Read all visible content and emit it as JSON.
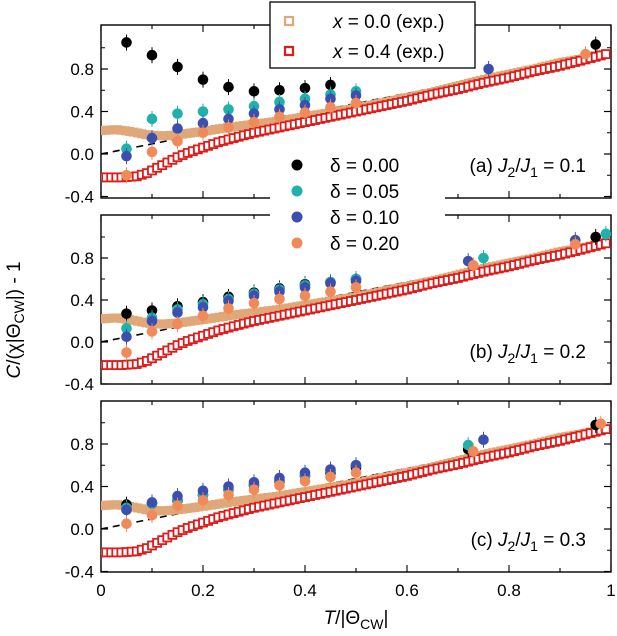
{
  "chart_data": {
    "type": "scatter",
    "xlabel": "T/|Θ_CW|",
    "ylabel": "C/(χ|Θ_CW|) - 1",
    "xlim": [
      0,
      1
    ],
    "ylim": [
      -0.4,
      1.15
    ],
    "x_ticks": [
      "0",
      "0.2",
      "0.4",
      "0.6",
      "0.8",
      "1"
    ],
    "y_ticks": [
      "-0.4",
      "0.0",
      "0.4",
      "0.8"
    ],
    "colors": {
      "x0": "#e0a878",
      "x4": "#dd1c1c",
      "d000": "#000000",
      "d005": "#20b2aa",
      "d010": "#3b4fb0",
      "d020": "#f08a58",
      "dash": "#000000"
    },
    "exp_legend": [
      {
        "x_label": "x",
        "rest": " = 0.0 (exp.)",
        "key": "x0"
      },
      {
        "x_label": "x",
        "rest": " = 0.4 (exp.)",
        "key": "x4"
      }
    ],
    "delta_legend": [
      {
        "label": "δ = 0.00",
        "key": "d000"
      },
      {
        "label": "δ = 0.05",
        "key": "d005"
      },
      {
        "label": "δ = 0.10",
        "key": "d010"
      },
      {
        "label": "δ = 0.20",
        "key": "d020"
      }
    ],
    "reference_line": {
      "style": "dashed",
      "intercept": 0.0,
      "slope": 0.95
    },
    "experimental": {
      "x0": [
        [
          0.0,
          0.22
        ],
        [
          0.03,
          0.23
        ],
        [
          0.06,
          0.21
        ],
        [
          0.09,
          0.18
        ],
        [
          0.12,
          0.17
        ],
        [
          0.15,
          0.18
        ],
        [
          0.18,
          0.2
        ],
        [
          0.21,
          0.22
        ],
        [
          0.25,
          0.25
        ],
        [
          0.3,
          0.28
        ],
        [
          0.35,
          0.31
        ],
        [
          0.4,
          0.35
        ],
        [
          0.45,
          0.39
        ],
        [
          0.5,
          0.43
        ],
        [
          0.55,
          0.48
        ],
        [
          0.6,
          0.53
        ],
        [
          0.65,
          0.58
        ],
        [
          0.7,
          0.64
        ],
        [
          0.75,
          0.7
        ],
        [
          0.8,
          0.75
        ],
        [
          0.85,
          0.8
        ],
        [
          0.9,
          0.86
        ],
        [
          0.95,
          0.9
        ],
        [
          0.98,
          0.94
        ]
      ],
      "x4": [
        [
          0.0,
          -0.22
        ],
        [
          0.04,
          -0.22
        ],
        [
          0.07,
          -0.21
        ],
        [
          0.09,
          -0.18
        ],
        [
          0.11,
          -0.13
        ],
        [
          0.13,
          -0.08
        ],
        [
          0.15,
          -0.03
        ],
        [
          0.17,
          0.01
        ],
        [
          0.2,
          0.06
        ],
        [
          0.23,
          0.11
        ],
        [
          0.26,
          0.15
        ],
        [
          0.3,
          0.2
        ],
        [
          0.34,
          0.24
        ],
        [
          0.38,
          0.28
        ],
        [
          0.42,
          0.32
        ],
        [
          0.46,
          0.36
        ],
        [
          0.5,
          0.4
        ],
        [
          0.55,
          0.45
        ],
        [
          0.6,
          0.5
        ],
        [
          0.65,
          0.56
        ],
        [
          0.7,
          0.61
        ],
        [
          0.75,
          0.67
        ],
        [
          0.8,
          0.72
        ],
        [
          0.85,
          0.78
        ],
        [
          0.9,
          0.83
        ],
        [
          0.95,
          0.89
        ],
        [
          0.99,
          0.94
        ]
      ]
    },
    "panels": [
      {
        "label_prefix": "(a) ",
        "label_J2": "J",
        "label_sub2": "2",
        "label_mid": "/",
        "label_J1": "J",
        "label_sub1": "1",
        "label_value": " = 0.1",
        "series": [
          {
            "key": "d000",
            "points": [
              [
                0.05,
                1.05
              ],
              [
                0.1,
                0.93
              ],
              [
                0.15,
                0.82
              ],
              [
                0.2,
                0.7
              ],
              [
                0.25,
                0.63
              ],
              [
                0.3,
                0.59
              ],
              [
                0.35,
                0.6
              ],
              [
                0.4,
                0.62
              ],
              [
                0.45,
                0.65
              ],
              [
                0.97,
                1.03
              ]
            ]
          },
          {
            "key": "d005",
            "points": [
              [
                0.05,
                0.05
              ],
              [
                0.1,
                0.33
              ],
              [
                0.15,
                0.38
              ],
              [
                0.2,
                0.4
              ],
              [
                0.25,
                0.42
              ],
              [
                0.3,
                0.45
              ],
              [
                0.35,
                0.49
              ],
              [
                0.4,
                0.52
              ],
              [
                0.45,
                0.56
              ],
              [
                0.5,
                0.59
              ]
            ]
          },
          {
            "key": "d010",
            "points": [
              [
                0.05,
                -0.02
              ],
              [
                0.1,
                0.15
              ],
              [
                0.15,
                0.24
              ],
              [
                0.2,
                0.29
              ],
              [
                0.25,
                0.33
              ],
              [
                0.3,
                0.38
              ],
              [
                0.35,
                0.42
              ],
              [
                0.4,
                0.46
              ],
              [
                0.45,
                0.52
              ],
              [
                0.5,
                0.55
              ],
              [
                0.76,
                0.8
              ]
            ]
          },
          {
            "key": "d020",
            "points": [
              [
                0.05,
                -0.2
              ],
              [
                0.1,
                0.02
              ],
              [
                0.15,
                0.12
              ],
              [
                0.2,
                0.2
              ],
              [
                0.25,
                0.25
              ],
              [
                0.3,
                0.3
              ],
              [
                0.35,
                0.35
              ],
              [
                0.4,
                0.39
              ],
              [
                0.45,
                0.44
              ],
              [
                0.5,
                0.48
              ],
              [
                0.95,
                0.94
              ]
            ]
          }
        ]
      },
      {
        "label_prefix": "(b) ",
        "label_J2": "J",
        "label_sub2": "2",
        "label_mid": "/",
        "label_J1": "J",
        "label_sub1": "1",
        "label_value": " = 0.2",
        "series": [
          {
            "key": "d000",
            "points": [
              [
                0.05,
                0.27
              ],
              [
                0.1,
                0.3
              ],
              [
                0.15,
                0.34
              ],
              [
                0.2,
                0.38
              ],
              [
                0.25,
                0.43
              ],
              [
                0.3,
                0.47
              ],
              [
                0.35,
                0.51
              ],
              [
                0.4,
                0.55
              ],
              [
                0.45,
                0.57
              ],
              [
                0.5,
                0.6
              ],
              [
                0.97,
                1.0
              ]
            ]
          },
          {
            "key": "d005",
            "points": [
              [
                0.05,
                0.13
              ],
              [
                0.1,
                0.23
              ],
              [
                0.15,
                0.31
              ],
              [
                0.2,
                0.36
              ],
              [
                0.25,
                0.41
              ],
              [
                0.3,
                0.46
              ],
              [
                0.35,
                0.5
              ],
              [
                0.4,
                0.54
              ],
              [
                0.45,
                0.57
              ],
              [
                0.5,
                0.6
              ],
              [
                0.75,
                0.8
              ],
              [
                0.99,
                1.03
              ]
            ]
          },
          {
            "key": "d010",
            "points": [
              [
                0.05,
                0.05
              ],
              [
                0.1,
                0.2
              ],
              [
                0.15,
                0.28
              ],
              [
                0.2,
                0.33
              ],
              [
                0.25,
                0.39
              ],
              [
                0.3,
                0.44
              ],
              [
                0.35,
                0.48
              ],
              [
                0.4,
                0.52
              ],
              [
                0.45,
                0.56
              ],
              [
                0.5,
                0.58
              ],
              [
                0.72,
                0.77
              ],
              [
                0.93,
                0.97
              ]
            ]
          },
          {
            "key": "d020",
            "points": [
              [
                0.05,
                -0.1
              ],
              [
                0.1,
                0.1
              ],
              [
                0.15,
                0.17
              ],
              [
                0.2,
                0.25
              ],
              [
                0.25,
                0.32
              ],
              [
                0.3,
                0.37
              ],
              [
                0.35,
                0.41
              ],
              [
                0.4,
                0.44
              ],
              [
                0.45,
                0.48
              ],
              [
                0.5,
                0.52
              ],
              [
                0.73,
                0.73
              ],
              [
                0.93,
                0.93
              ]
            ]
          }
        ]
      },
      {
        "label_prefix": "(c) ",
        "label_J2": "J",
        "label_sub2": "2",
        "label_mid": "/",
        "label_J1": "J",
        "label_sub1": "1",
        "label_value": " = 0.3",
        "series": [
          {
            "key": "d000",
            "points": [
              [
                0.05,
                0.23
              ],
              [
                0.1,
                0.24
              ],
              [
                0.15,
                0.27
              ],
              [
                0.2,
                0.32
              ],
              [
                0.25,
                0.37
              ],
              [
                0.3,
                0.41
              ],
              [
                0.35,
                0.45
              ],
              [
                0.4,
                0.5
              ],
              [
                0.45,
                0.53
              ],
              [
                0.5,
                0.58
              ],
              [
                0.72,
                0.75
              ],
              [
                0.97,
                0.98
              ]
            ]
          },
          {
            "key": "d005",
            "points": [
              [
                0.05,
                0.2
              ],
              [
                0.1,
                0.24
              ],
              [
                0.15,
                0.28
              ],
              [
                0.2,
                0.32
              ],
              [
                0.25,
                0.37
              ],
              [
                0.3,
                0.42
              ],
              [
                0.35,
                0.46
              ],
              [
                0.4,
                0.5
              ],
              [
                0.45,
                0.55
              ],
              [
                0.5,
                0.6
              ],
              [
                0.72,
                0.79
              ]
            ]
          },
          {
            "key": "d010",
            "points": [
              [
                0.05,
                0.18
              ],
              [
                0.1,
                0.25
              ],
              [
                0.15,
                0.31
              ],
              [
                0.2,
                0.36
              ],
              [
                0.25,
                0.4
              ],
              [
                0.3,
                0.44
              ],
              [
                0.35,
                0.48
              ],
              [
                0.4,
                0.53
              ],
              [
                0.45,
                0.56
              ],
              [
                0.5,
                0.6
              ],
              [
                0.75,
                0.84
              ]
            ]
          },
          {
            "key": "d020",
            "points": [
              [
                0.05,
                0.05
              ],
              [
                0.1,
                0.13
              ],
              [
                0.15,
                0.22
              ],
              [
                0.2,
                0.27
              ],
              [
                0.25,
                0.32
              ],
              [
                0.3,
                0.37
              ],
              [
                0.35,
                0.41
              ],
              [
                0.4,
                0.45
              ],
              [
                0.45,
                0.49
              ],
              [
                0.5,
                0.53
              ],
              [
                0.73,
                0.73
              ],
              [
                0.98,
                0.99
              ]
            ]
          }
        ]
      }
    ]
  }
}
